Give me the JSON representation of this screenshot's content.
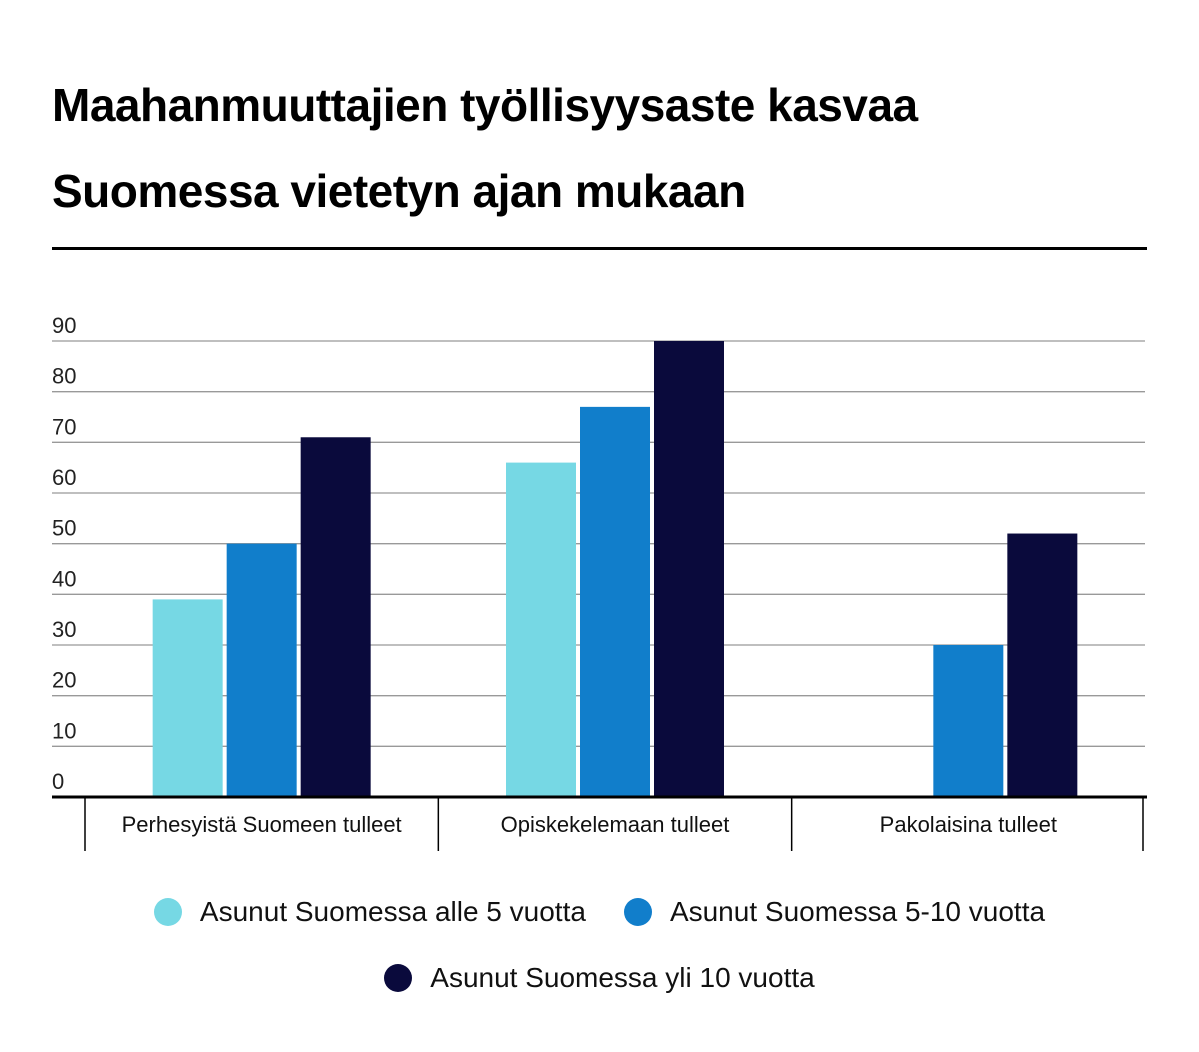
{
  "title_line1": "Maahanmuuttajien työllisyysaste kasvaa",
  "title_line2": "Suomessa vietetyn ajan mukaan",
  "colors": {
    "alle5": "#76d8e4",
    "v5_10": "#117ecb",
    "yli10": "#0a0a3c",
    "grid": "#999999",
    "axis": "#000000"
  },
  "chart_data": {
    "type": "bar",
    "title": "Maahanmuuttajien työllisyysaste kasvaa Suomessa vietetyn ajan mukaan",
    "xlabel": "",
    "ylabel": "",
    "ylim": [
      0,
      90
    ],
    "yticks": [
      0,
      10,
      20,
      30,
      40,
      50,
      60,
      70,
      80,
      90
    ],
    "grid": true,
    "legend_position": "bottom",
    "categories": [
      "Perhesyistä Suomeen tulleet",
      "Opiskekelemaan tulleet",
      "Pakolaisina tulleet"
    ],
    "series": [
      {
        "name": "Asunut Suomessa alle 5 vuotta",
        "color": "#76d8e4",
        "values": [
          39,
          66,
          null
        ]
      },
      {
        "name": "Asunut Suomessa 5-10 vuotta",
        "color": "#117ecb",
        "values": [
          50,
          77,
          30
        ]
      },
      {
        "name": "Asunut Suomessa yli 10 vuotta",
        "color": "#0a0a3c",
        "values": [
          71,
          90,
          52
        ]
      }
    ]
  }
}
